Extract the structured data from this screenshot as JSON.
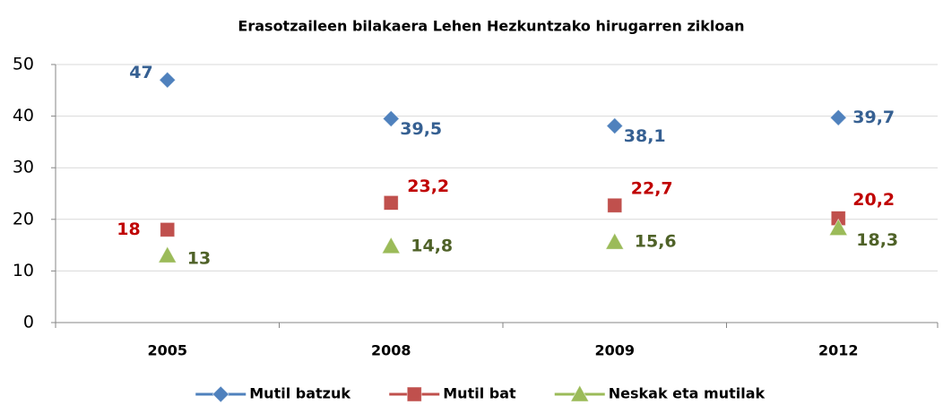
{
  "chart_data": {
    "type": "scatter",
    "title": "Erasotzaileen bilakaera Lehen Hezkuntzako hirugarren zikloan",
    "categories": [
      "2005",
      "2008",
      "2009",
      "2012"
    ],
    "series": [
      {
        "name": "Mutil batzuk",
        "color": "#4f81bd",
        "label_color": "#366092",
        "marker": "diamond",
        "values": [
          47,
          39.5,
          38.1,
          39.7
        ],
        "value_labels": [
          "47",
          "39,5",
          "38,1",
          "39,7"
        ]
      },
      {
        "name": "Mutil bat",
        "color": "#c0504d",
        "label_color": "#c00000",
        "marker": "square",
        "values": [
          18,
          23.2,
          22.7,
          20.2
        ],
        "value_labels": [
          "18",
          "23,2",
          "22,7",
          "20,2"
        ]
      },
      {
        "name": "Neskak eta mutilak",
        "color": "#9bbb59",
        "label_color": "#4f6228",
        "marker": "triangle",
        "values": [
          13,
          14.8,
          15.6,
          18.3
        ],
        "value_labels": [
          "13",
          "14,8",
          "15,6",
          "18,3"
        ]
      }
    ],
    "ylim": [
      0,
      50
    ],
    "yticks": [
      0,
      10,
      20,
      30,
      40,
      50
    ],
    "grid": true,
    "legend": "bottom"
  }
}
